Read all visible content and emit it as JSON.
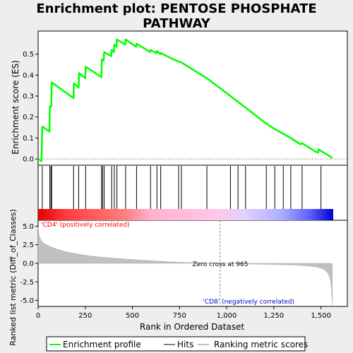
{
  "title_lines": [
    "Enrichment plot: PENTOSE PHOSPHATE",
    "PATHWAY"
  ],
  "chart_data": [
    {
      "type": "line",
      "name": "enrichment-profile",
      "ylabel": "Enrichment score (ES)",
      "xlim": [
        0,
        1565
      ],
      "ylim": [
        -0.03,
        0.61
      ],
      "yticks": [
        "0.0",
        "0.1",
        "0.2",
        "0.3",
        "0.4",
        "0.5"
      ],
      "ytick_values": [
        0.0,
        0.1,
        0.2,
        0.3,
        0.4,
        0.5
      ],
      "color": "#00ff00",
      "points": [
        [
          0,
          0
        ],
        [
          18,
          -0.01
        ],
        [
          22,
          0.155
        ],
        [
          60,
          0.13
        ],
        [
          62,
          0.25
        ],
        [
          70,
          0.25
        ],
        [
          72,
          0.365
        ],
        [
          188,
          0.29
        ],
        [
          190,
          0.36
        ],
        [
          215,
          0.34
        ],
        [
          217,
          0.41
        ],
        [
          250,
          0.385
        ],
        [
          252,
          0.44
        ],
        [
          336,
          0.39
        ],
        [
          338,
          0.475
        ],
        [
          348,
          0.47
        ],
        [
          350,
          0.51
        ],
        [
          388,
          0.49
        ],
        [
          390,
          0.52
        ],
        [
          402,
          0.51
        ],
        [
          404,
          0.545
        ],
        [
          416,
          0.535
        ],
        [
          418,
          0.57
        ],
        [
          462,
          0.545
        ],
        [
          464,
          0.57
        ],
        [
          520,
          0.535
        ],
        [
          522,
          0.55
        ],
        [
          594,
          0.51
        ],
        [
          596,
          0.52
        ],
        [
          628,
          0.505
        ],
        [
          630,
          0.515
        ],
        [
          648,
          0.5
        ],
        [
          650,
          0.505
        ],
        [
          730,
          0.47
        ],
        [
          745,
          0.465
        ],
        [
          760,
          0.46
        ],
        [
          895,
          0.385
        ],
        [
          1020,
          0.3
        ],
        [
          1100,
          0.245
        ],
        [
          1200,
          0.175
        ],
        [
          1250,
          0.145
        ],
        [
          1300,
          0.12
        ],
        [
          1340,
          0.1
        ],
        [
          1390,
          0.07
        ],
        [
          1400,
          0.075
        ],
        [
          1470,
          0.035
        ],
        [
          1485,
          0.03
        ],
        [
          1487,
          0.045
        ],
        [
          1560,
          0.005
        ]
      ]
    },
    {
      "type": "hits",
      "name": "hits",
      "hits": [
        22,
        62,
        68,
        72,
        188,
        215,
        252,
        336,
        342,
        350,
        390,
        404,
        418,
        464,
        522,
        596,
        630,
        650,
        745,
        760,
        895,
        1020,
        1060,
        1100,
        1210,
        1255,
        1300,
        1340,
        1400,
        1500
      ]
    },
    {
      "type": "area",
      "name": "ranked-list-metric",
      "ylabel": "Ranked list metric (Diff_of_Classes)",
      "xlabel": "Rank in Ordered Dataset",
      "xlim": [
        0,
        1565
      ],
      "ylim": [
        -5.8,
        5.8
      ],
      "xticks": [
        "0",
        "250",
        "500",
        "750",
        "1,000",
        "1,250",
        "1,500"
      ],
      "xtick_values": [
        0,
        250,
        500,
        750,
        1000,
        1250,
        1500
      ],
      "yticks": [
        "5.0",
        "2.5",
        "0.0",
        "-2.5",
        "-5.0"
      ],
      "ytick_values": [
        5.0,
        2.5,
        0.0,
        -2.5,
        -5.0
      ],
      "points": [
        [
          0,
          4.9
        ],
        [
          5,
          3.8
        ],
        [
          15,
          3.1
        ],
        [
          30,
          2.7
        ],
        [
          60,
          2.3
        ],
        [
          100,
          1.9
        ],
        [
          150,
          1.55
        ],
        [
          200,
          1.3
        ],
        [
          260,
          1.05
        ],
        [
          330,
          0.85
        ],
        [
          400,
          0.7
        ],
        [
          500,
          0.5
        ],
        [
          600,
          0.35
        ],
        [
          700,
          0.2
        ],
        [
          800,
          0.1
        ],
        [
          900,
          0.04
        ],
        [
          965,
          0
        ],
        [
          1050,
          -0.05
        ],
        [
          1150,
          -0.1
        ],
        [
          1250,
          -0.15
        ],
        [
          1350,
          -0.22
        ],
        [
          1430,
          -0.35
        ],
        [
          1480,
          -0.5
        ],
        [
          1510,
          -0.75
        ],
        [
          1530,
          -1.1
        ],
        [
          1540,
          -1.5
        ],
        [
          1548,
          -2.0
        ],
        [
          1553,
          -2.7
        ],
        [
          1556,
          -3.5
        ],
        [
          1560,
          -5.6
        ]
      ],
      "zero_cross_label": "Zero cross at 965",
      "zero_cross": 965,
      "pos_label": "'CD4' (positively correlated)",
      "neg_label": "'CD8' (negatively correlated)",
      "pos_color": "#ff0000",
      "neg_color": "#0000cc"
    }
  ],
  "legend": [
    {
      "label": "Enrichment profile",
      "color": "#00ff00"
    },
    {
      "label": "Hits",
      "color": "#000000"
    },
    {
      "label": "Ranking metric scores",
      "color": "#c0c0c0"
    }
  ]
}
